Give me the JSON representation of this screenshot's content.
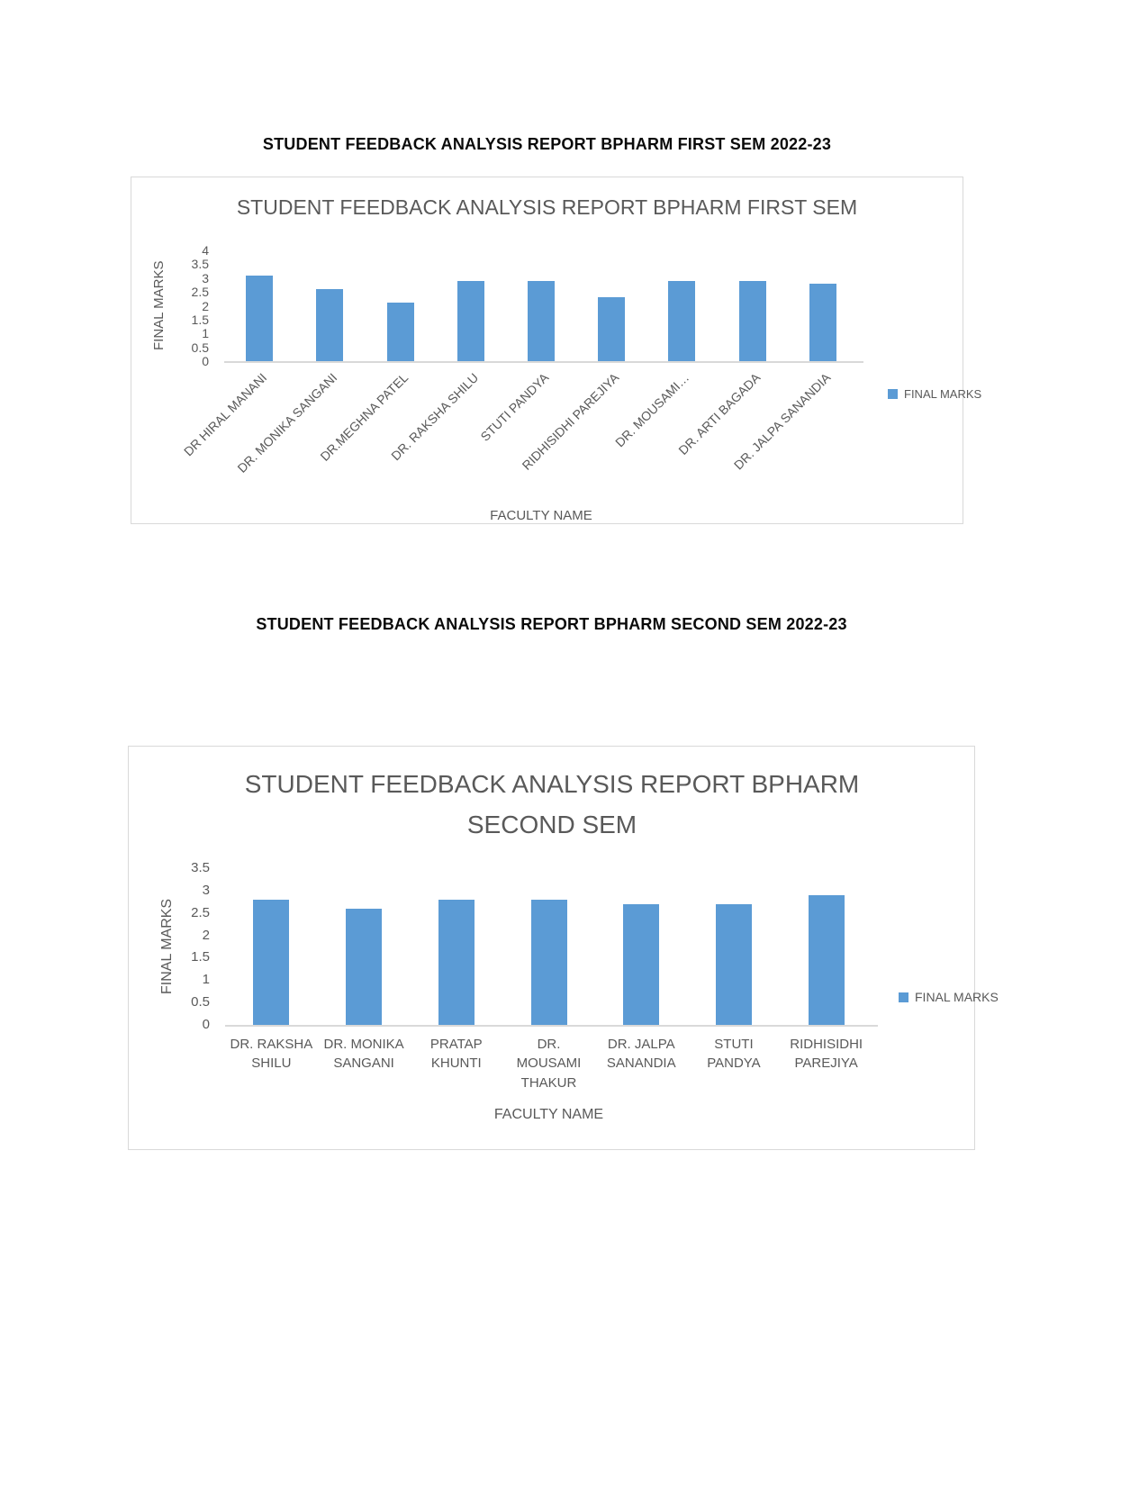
{
  "page": {
    "heading_first": "STUDENT FEEDBACK ANALYSIS REPORT BPHARM FIRST SEM 2022-23",
    "heading_second": "STUDENT FEEDBACK ANALYSIS REPORT BPHARM SECOND SEM 2022-23"
  },
  "colors": {
    "bar": "#5B9BD5",
    "axis_line": "#D9D9D9",
    "chart_text": "#595959",
    "heading_text": "#0A0A0A"
  },
  "chart_data": [
    {
      "type": "bar",
      "title": "STUDENT FEEDBACK ANALYSIS REPORT BPHARM  FIRST SEM",
      "xlabel": "FACULTY NAME",
      "ylabel": "FINAL MARKS",
      "legend": [
        "FINAL MARKS"
      ],
      "legend_position": "right",
      "grid": false,
      "ylim": [
        0,
        4
      ],
      "yticks": [
        0,
        0.5,
        1,
        1.5,
        2,
        2.5,
        3,
        3.5,
        4
      ],
      "x_label_rotation": -45,
      "categories": [
        "DR HIRAL MANANI",
        "DR. MONIKA SANGANI",
        "DR.MEGHNA PATEL",
        "DR. RAKSHA SHILU",
        "STUTI PANDYA",
        "RIDHISIDHI PAREJIYA",
        "DR. MOUSAMI…",
        "DR. ARTI BAGADA",
        "DR. JALPA SANANDIA"
      ],
      "values": [
        3.1,
        2.6,
        2.1,
        2.9,
        2.9,
        2.3,
        2.9,
        2.9,
        2.8
      ]
    },
    {
      "type": "bar",
      "title": "STUDENT FEEDBACK ANALYSIS REPORT BPHARM SECOND SEM",
      "xlabel": "FACULTY NAME",
      "ylabel": "FINAL MARKS",
      "legend": [
        "FINAL MARKS"
      ],
      "legend_position": "right",
      "grid": false,
      "ylim": [
        0,
        3.5
      ],
      "yticks": [
        0,
        0.5,
        1,
        1.5,
        2,
        2.5,
        3,
        3.5
      ],
      "x_label_rotation": 0,
      "categories": [
        "DR. RAKSHA SHILU",
        "DR. MONIKA SANGANI",
        "PRATAP KHUNTI",
        "DR. MOUSAMI THAKUR",
        "DR. JALPA SANANDIA",
        "STUTI PANDYA",
        "RIDHISIDHI PAREJIYA"
      ],
      "values": [
        2.8,
        2.6,
        2.8,
        2.8,
        2.7,
        2.7,
        2.9
      ]
    }
  ]
}
